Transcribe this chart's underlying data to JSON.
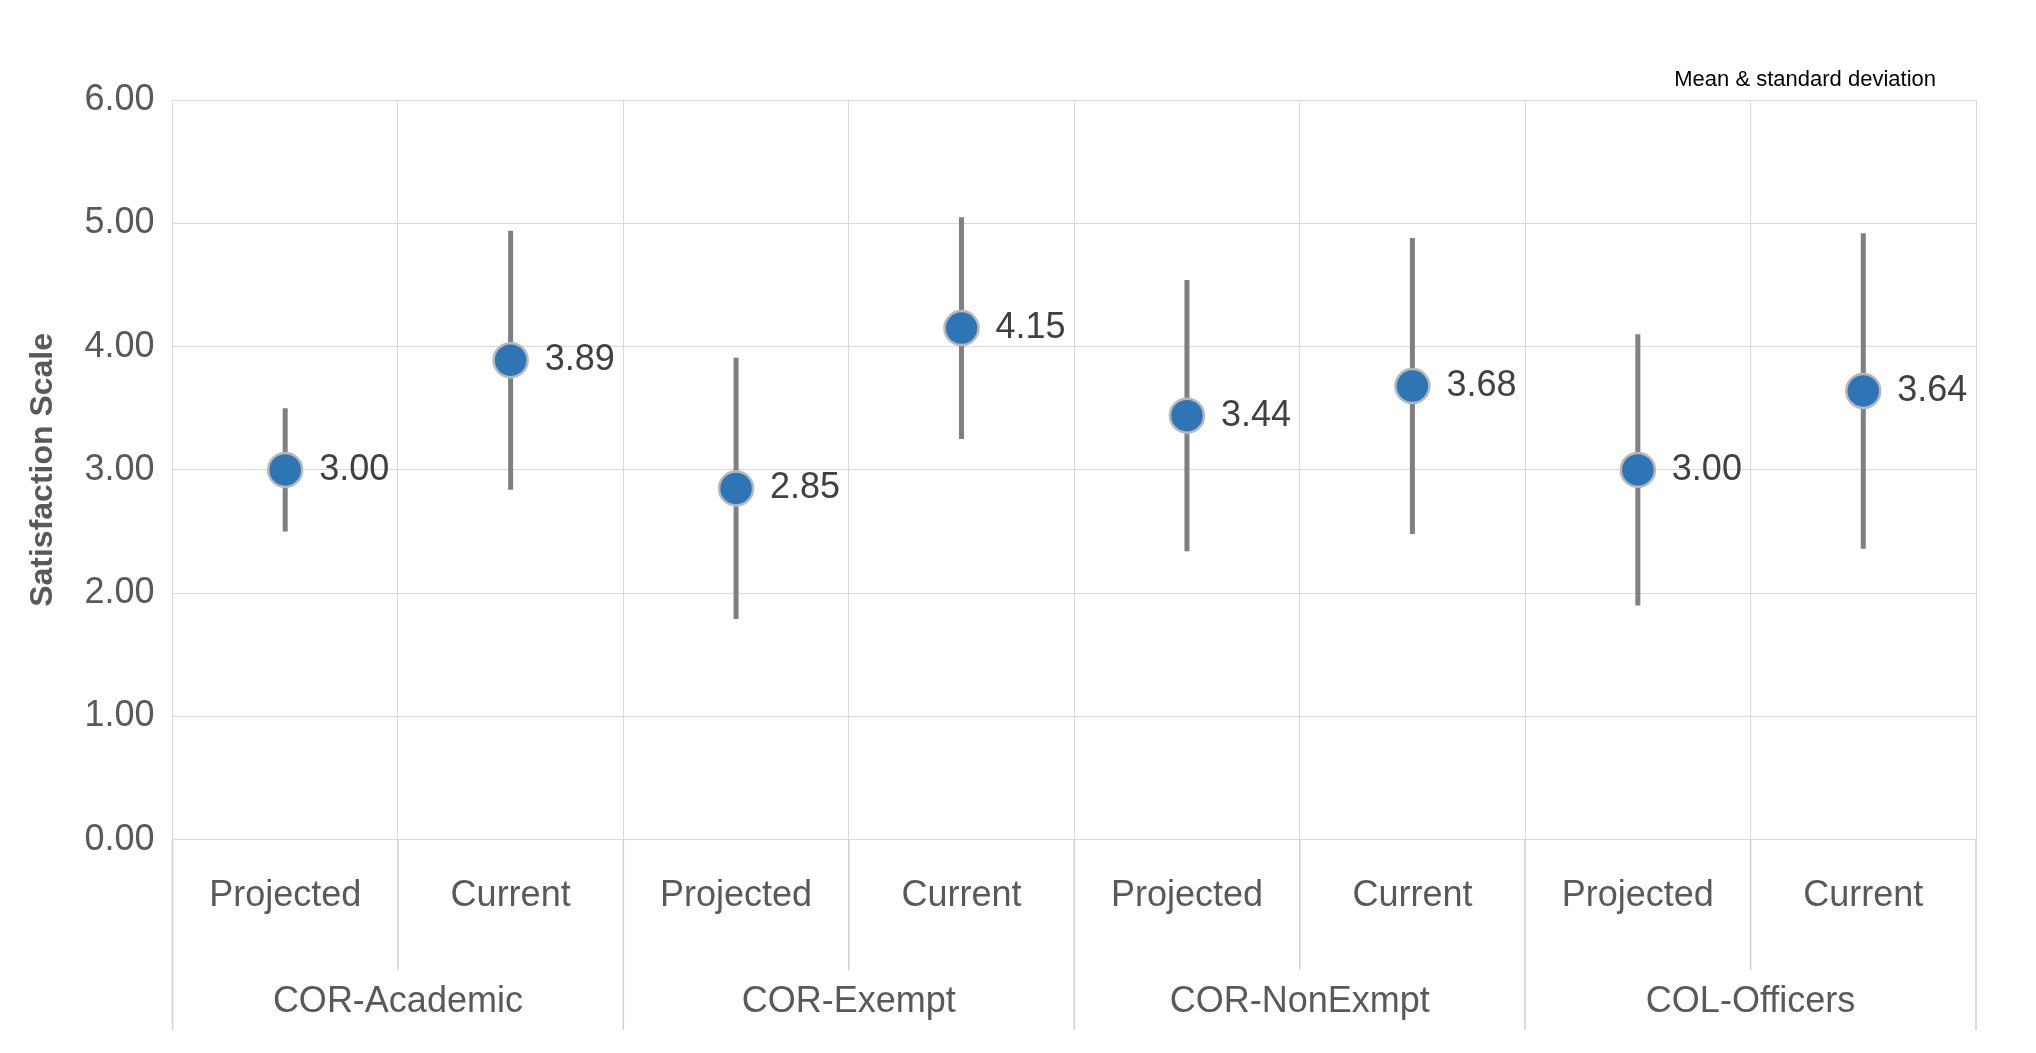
{
  "chart_data": {
    "type": "scatter",
    "ylabel": "Satisfaction Scale",
    "annotations": [
      "Mean & standard deviation",
      "COR-Academic",
      "COR-Exempt",
      "COR-NonExmpt",
      "COL-Officers"
    ],
    "categories": [
      "Projected",
      "Current",
      "Projected",
      "Current",
      "Projected",
      "Current",
      "Projected",
      "Current"
    ],
    "series": [
      {
        "color": "#2e75b6",
        "values": [
          3.0,
          3.89,
          2.85,
          4.15,
          3.44,
          3.68,
          3.0,
          3.64
        ],
        "value_labels": [
          "3.00",
          "3.89",
          "2.85",
          "4.15",
          "3.44",
          "3.68",
          "3.00",
          "3.64"
        ],
        "errors": [
          0.5,
          1.05,
          1.06,
          0.9,
          1.1,
          1.2,
          1.1,
          1.28
        ]
      }
    ],
    "ylim": [
      0,
      6
    ],
    "yticks": [
      {
        "value": 0,
        "label": "0.00"
      },
      {
        "value": 1,
        "label": "1.00"
      },
      {
        "value": 2,
        "label": "2.00"
      },
      {
        "value": 3,
        "label": "3.00"
      },
      {
        "value": 4,
        "label": "4.00"
      },
      {
        "value": 5,
        "label": "5.00"
      },
      {
        "value": 6,
        "label": "6.00"
      }
    ],
    "grid": true,
    "marker": "circle",
    "legend": false
  }
}
